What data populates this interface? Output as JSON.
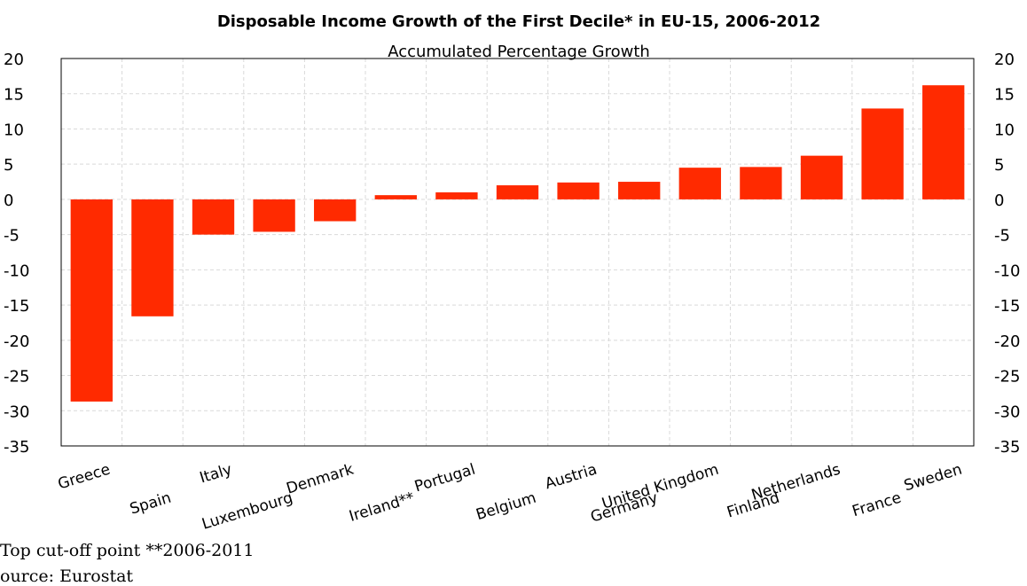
{
  "chart_data": {
    "type": "bar",
    "title": "Disposable Income Growth of the First Decile* in EU-15, 2006-2012",
    "subtitle": "Accumulated Percentage Growth",
    "categories": [
      "Greece",
      "Spain",
      "Italy",
      "Luxembourg",
      "Denmark",
      "Ireland**",
      "Portugal",
      "Belgium",
      "Austria",
      "Germany",
      "United Kingdom",
      "Finland",
      "Netherlands",
      "France",
      "Sweden"
    ],
    "values": [
      -28.7,
      -16.6,
      -5.0,
      -4.6,
      -3.1,
      0.6,
      1.0,
      2.0,
      2.4,
      2.5,
      4.5,
      4.6,
      6.2,
      12.9,
      16.2
    ],
    "ylim": [
      -35,
      20
    ],
    "yticks": [
      20,
      15,
      10,
      5,
      0,
      -5,
      -10,
      -15,
      -20,
      -25,
      -30,
      -35
    ],
    "secondary_axis": true,
    "grid": true,
    "bar_color": "#ff2a00",
    "legend": "none"
  },
  "footnotes": {
    "line1": "Top cut-off point **2006-2011",
    "line2": "ource: Eurostat"
  }
}
